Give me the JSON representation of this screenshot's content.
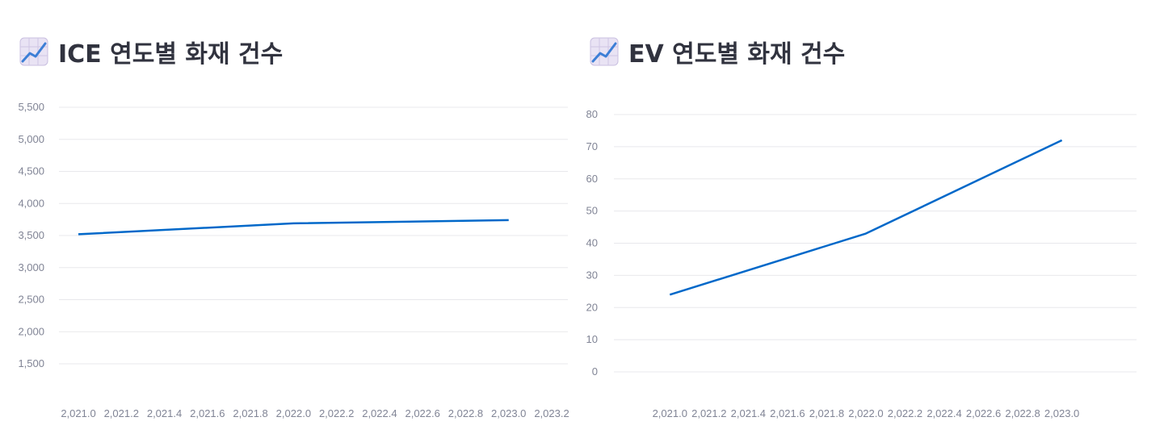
{
  "chart_data": [
    {
      "type": "line",
      "title": "ICE 연도별 화재 건수",
      "title_icon": "chart-increasing-icon",
      "x": [
        2021.0,
        2022.0,
        2023.0
      ],
      "values": [
        3520,
        3690,
        3740
      ],
      "xlim": [
        2021.0,
        2023.2
      ],
      "ylim": [
        1500,
        5500
      ],
      "y_ticks": [
        1500,
        2000,
        2500,
        3000,
        3500,
        4000,
        4500,
        5000,
        5500
      ],
      "y_tick_labels": [
        "1,500",
        "2,000",
        "2,500",
        "3,000",
        "3,500",
        "4,000",
        "4,500",
        "5,000",
        "5,500"
      ],
      "x_ticks": [
        2021.0,
        2021.2,
        2021.4,
        2021.6,
        2021.8,
        2022.0,
        2022.2,
        2022.4,
        2022.6,
        2022.8,
        2023.0,
        2023.2
      ],
      "x_tick_labels": [
        "2,021.0",
        "2,021.2",
        "2,021.4",
        "2,021.6",
        "2,021.8",
        "2,022.0",
        "2,022.2",
        "2,022.4",
        "2,022.6",
        "2,022.8",
        "2,023.0",
        "2,023.2"
      ],
      "grid": true,
      "line_color": "#0068c9"
    },
    {
      "type": "line",
      "title": "EV 연도별 화재 건수",
      "title_icon": "chart-increasing-icon",
      "x": [
        2021.0,
        2022.0,
        2023.0
      ],
      "values": [
        24,
        43,
        72
      ],
      "xlim": [
        2020.9,
        2023.15
      ],
      "ylim": [
        0,
        80
      ],
      "y_ticks": [
        0,
        10,
        20,
        30,
        40,
        50,
        60,
        70,
        80
      ],
      "y_tick_labels": [
        "0",
        "10",
        "20",
        "30",
        "40",
        "50",
        "60",
        "70",
        "80"
      ],
      "x_ticks": [
        2021.0,
        2021.2,
        2021.4,
        2021.6,
        2021.8,
        2022.0,
        2022.2,
        2022.4,
        2022.6,
        2022.8,
        2023.0
      ],
      "x_tick_labels": [
        "2,021.0",
        "2,021.2",
        "2,021.4",
        "2,021.6",
        "2,021.8",
        "2,022.0",
        "2,022.2",
        "2,022.4",
        "2,022.6",
        "2,022.8",
        "2,023.0"
      ],
      "grid": true,
      "line_color": "#0068c9"
    }
  ]
}
